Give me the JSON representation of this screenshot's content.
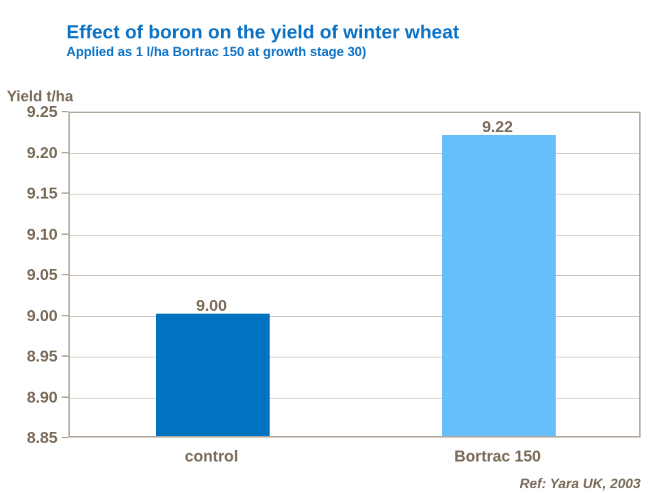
{
  "slide": {
    "title": "Effect of boron on the yield of winter wheat",
    "subtitle": "Applied as 1 l/ha Bortrac 150 at growth stage 30)",
    "reference": "Ref: Yara UK, 2003"
  },
  "colors": {
    "title_blue": "#0b72c6",
    "axis_text_brown": "#7a6a58",
    "plot_border": "#b2a79c",
    "gridline": "#beb4aa",
    "bar_control": "#0072c0",
    "bar_bortrac": "#66befb",
    "background": "#ffffff"
  },
  "chart_data": {
    "type": "bar",
    "title": "Effect of boron on the yield of winter wheat",
    "subtitle": "Applied as 1 l/ha Bortrac 150 at growth stage 30)",
    "categories": [
      "control",
      "Bortrac 150"
    ],
    "values": [
      9.0,
      9.22
    ],
    "value_labels": [
      "9.00",
      "9.22"
    ],
    "bar_colors": [
      "#0072c0",
      "#66befb"
    ],
    "xlabel": "",
    "ylabel": "Yield t/ha",
    "ylim": [
      8.85,
      9.25
    ],
    "ytick_step": 0.05,
    "yticks": [
      "9.25",
      "9.20",
      "9.15",
      "9.10",
      "9.05",
      "9.00",
      "8.95",
      "8.90",
      "8.85"
    ],
    "grid": true,
    "legend": "none",
    "source": "Ref: Yara UK, 2003"
  }
}
